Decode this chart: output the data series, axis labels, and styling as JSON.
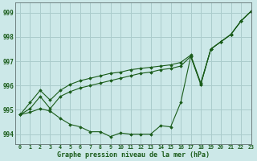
{
  "title": "Graphe pression niveau de la mer (hPa)",
  "xlim": [
    -0.5,
    23
  ],
  "ylim": [
    993.6,
    999.4
  ],
  "yticks": [
    994,
    995,
    996,
    997,
    998,
    999
  ],
  "xticks": [
    0,
    1,
    2,
    3,
    4,
    5,
    6,
    7,
    8,
    9,
    10,
    11,
    12,
    13,
    14,
    15,
    16,
    17,
    18,
    19,
    20,
    21,
    22,
    23
  ],
  "xtick_labels": [
    "0",
    "1",
    "2",
    "3",
    "4",
    "5",
    "6",
    "7",
    "8",
    "9",
    "10",
    "11",
    "12",
    "13",
    "14",
    "15",
    "16",
    "17",
    "18",
    "19",
    "20",
    "21",
    "22",
    "23"
  ],
  "background_color": "#cce8e8",
  "grid_color": "#aacccc",
  "line_color": "#1a5c1a",
  "series1": [
    994.8,
    994.9,
    995.05,
    994.95,
    994.65,
    994.4,
    994.3,
    994.1,
    994.1,
    993.9,
    994.05,
    994.0,
    994.0,
    994.0,
    994.35,
    994.3,
    995.3,
    997.2,
    996.05,
    997.5,
    997.8,
    998.1,
    998.65,
    999.05
  ],
  "series2": [
    994.8,
    995.05,
    995.55,
    995.05,
    995.55,
    995.75,
    995.9,
    996.0,
    996.1,
    996.2,
    996.3,
    996.4,
    996.5,
    996.55,
    996.65,
    996.7,
    996.8,
    997.2,
    996.05,
    997.5,
    997.8,
    998.1,
    998.65,
    999.05
  ],
  "series3": [
    994.8,
    995.3,
    995.8,
    995.4,
    995.8,
    996.05,
    996.2,
    996.3,
    996.4,
    996.5,
    996.55,
    996.65,
    996.7,
    996.75,
    996.8,
    996.85,
    996.95,
    997.25,
    996.1,
    997.5,
    997.8,
    998.1,
    998.65,
    999.05
  ]
}
